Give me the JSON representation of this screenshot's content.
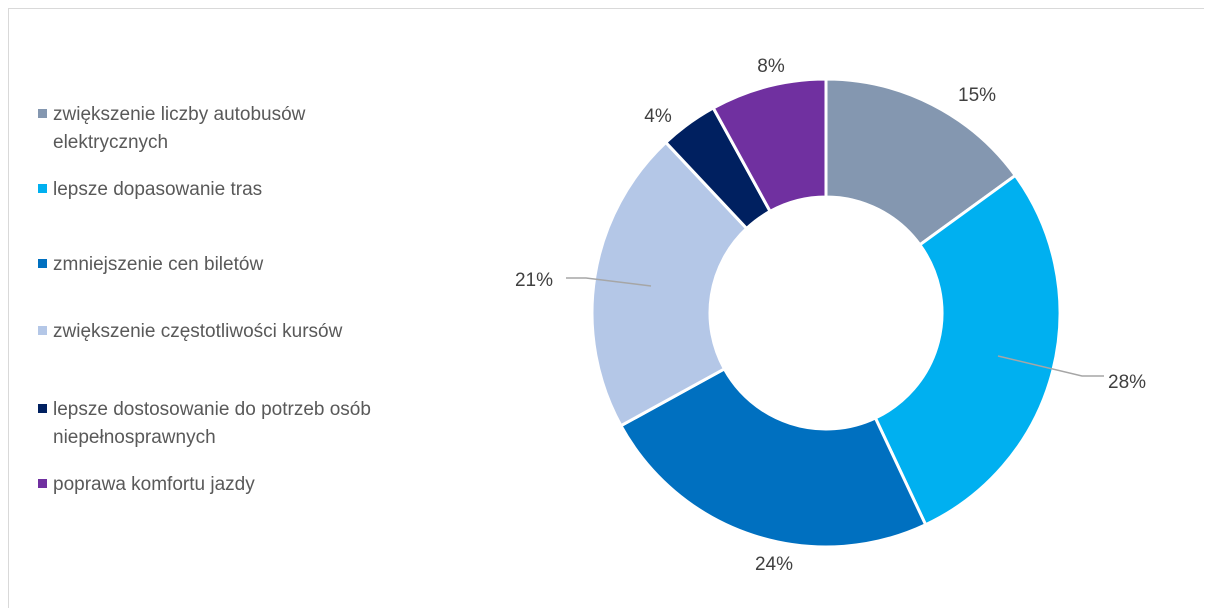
{
  "chart_data": {
    "type": "pie",
    "donut": true,
    "title": "",
    "legend_position": "left",
    "slices": [
      {
        "label": "zwiększenie liczby autobusów elektrycznych",
        "value": 15,
        "value_label": "15%",
        "color": "#8497B0"
      },
      {
        "label": "lepsze dopasowanie tras",
        "value": 28,
        "value_label": "28%",
        "color": "#00B0F0"
      },
      {
        "label": "zmniejszenie cen biletów",
        "value": 24,
        "value_label": "24%",
        "color": "#0070C0"
      },
      {
        "label": "zwiększenie częstotliwości kursów",
        "value": 21,
        "value_label": "21%",
        "color": "#B4C7E7"
      },
      {
        "label": "lepsze dostosowanie do potrzeb osób niepełnosprawnych",
        "value": 4,
        "value_label": "4%",
        "color": "#002060"
      },
      {
        "label": "poprawa komfortu jazdy",
        "value": 8,
        "value_label": "8%",
        "color": "#7030A0"
      }
    ]
  }
}
